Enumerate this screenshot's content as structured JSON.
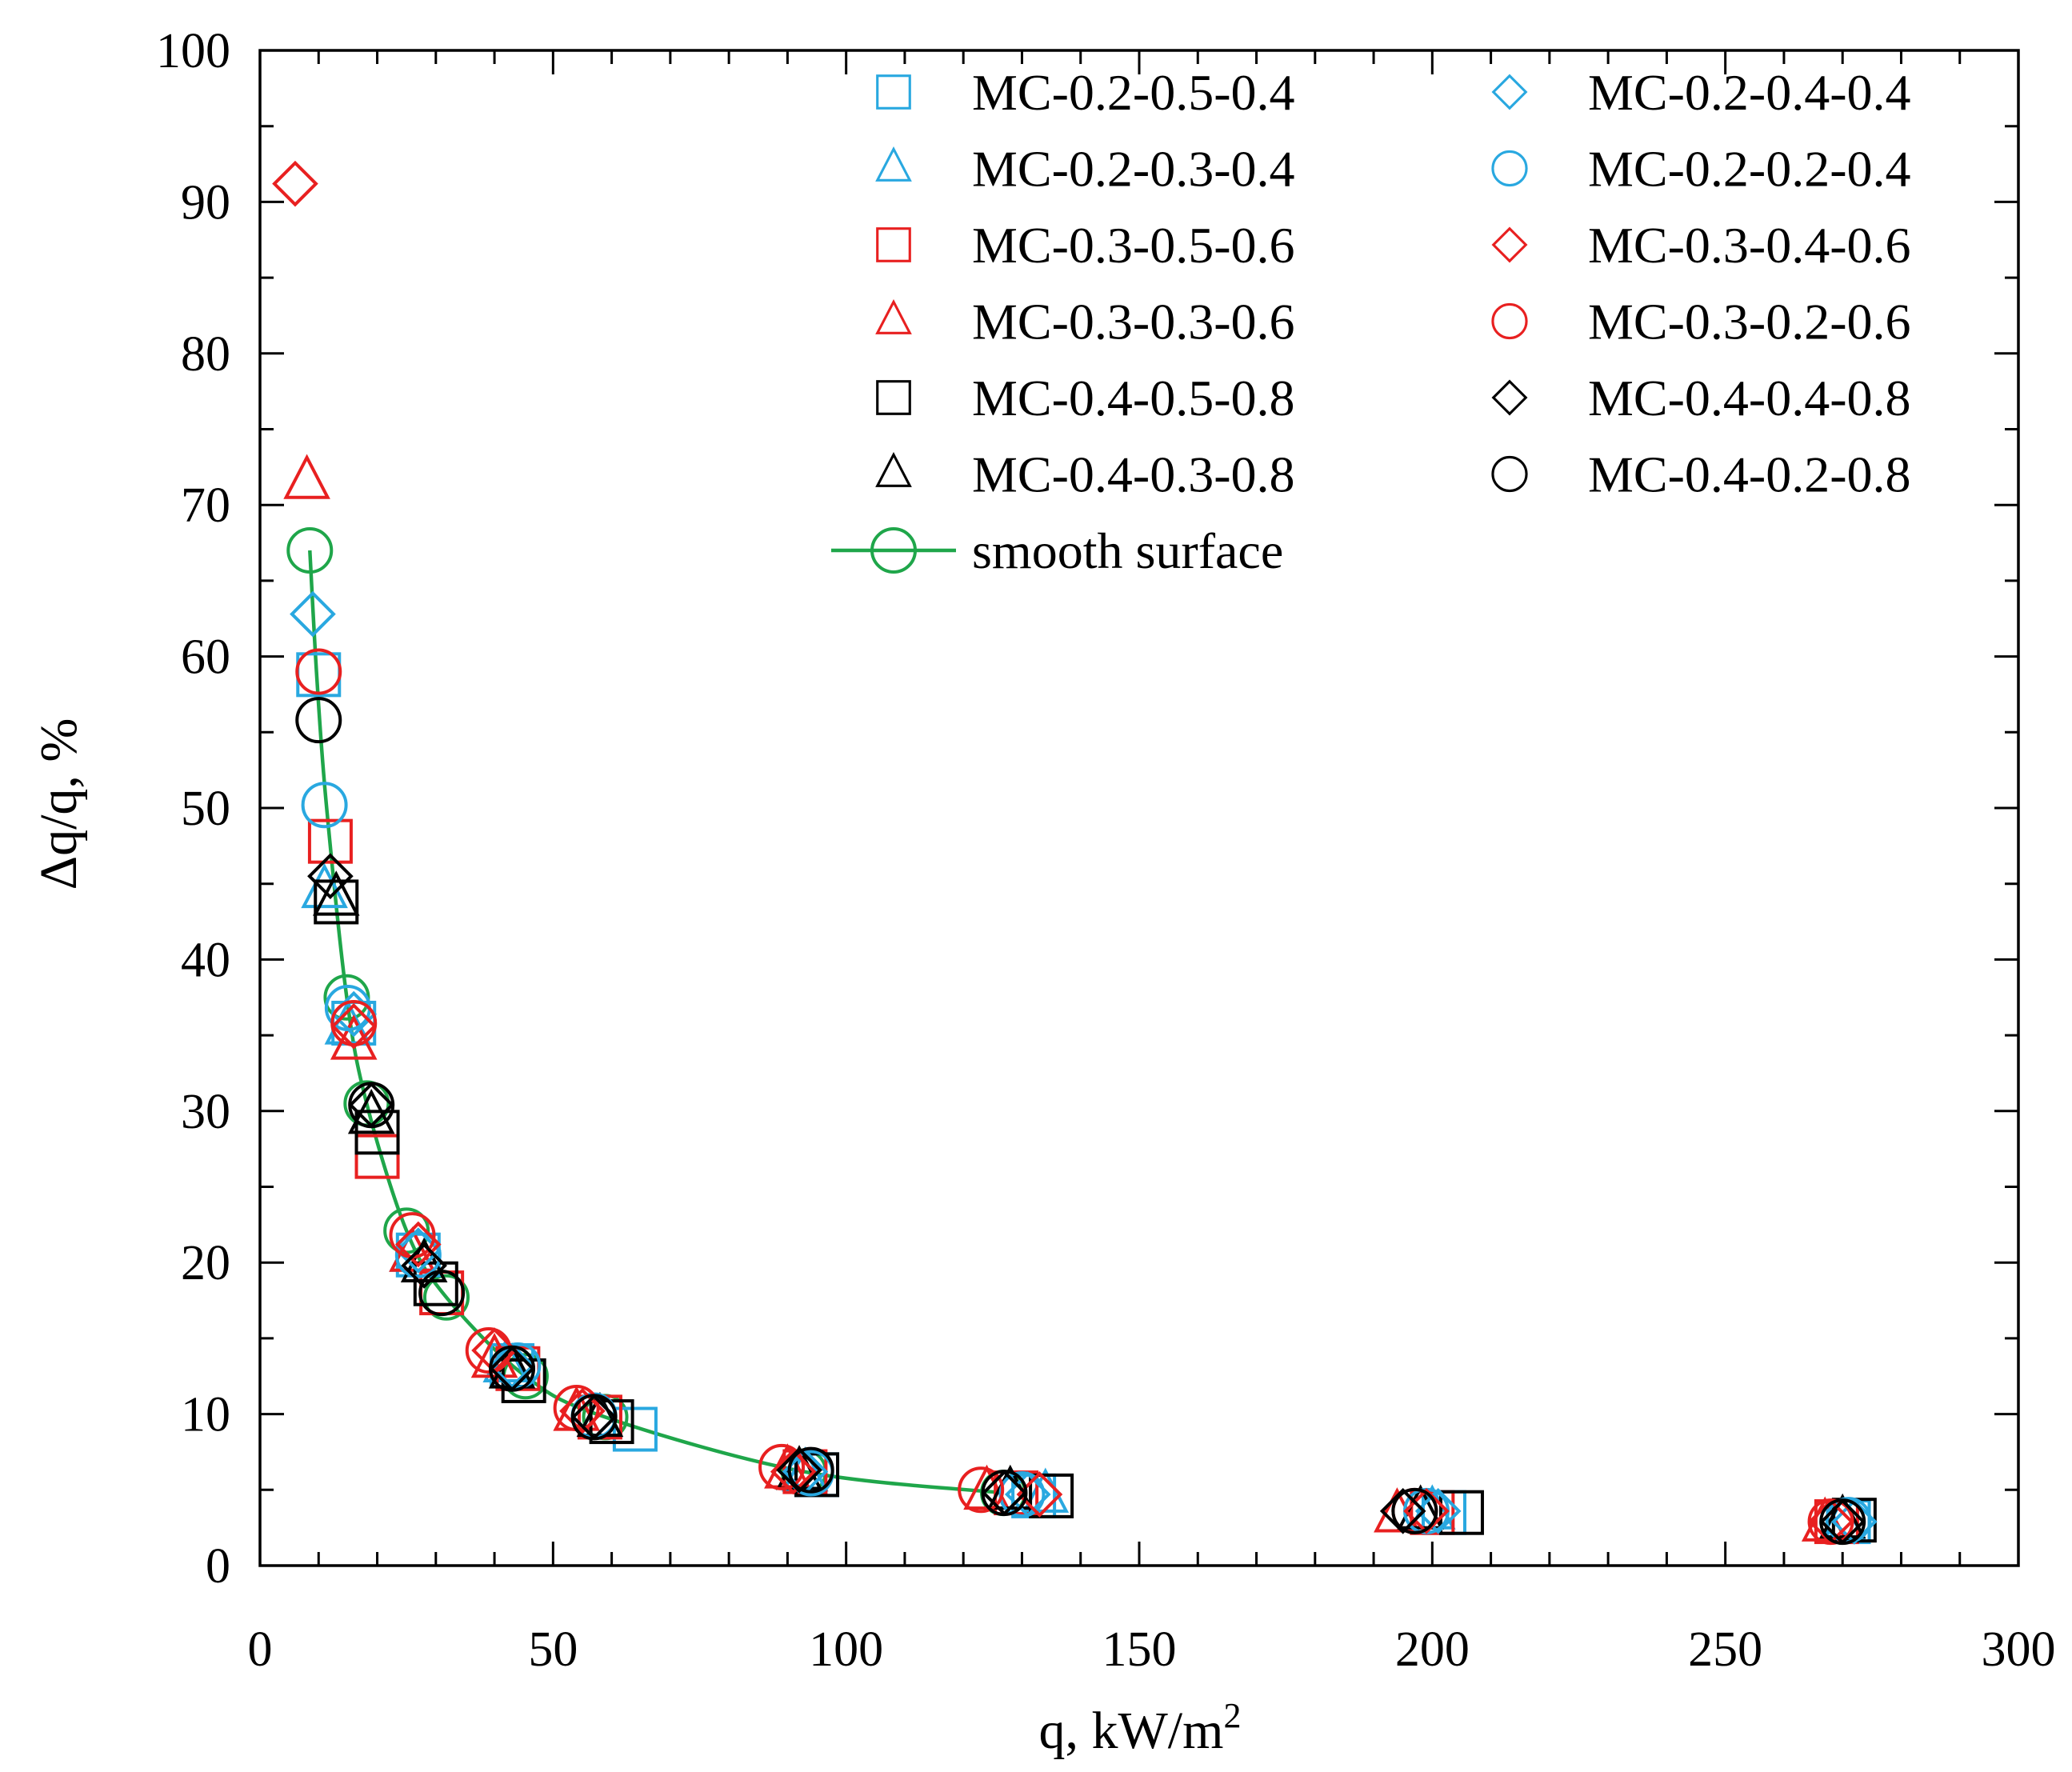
{
  "chart_data": {
    "type": "scatter",
    "xlabel": "q, kW/m",
    "xlabel_superscript": "2",
    "ylabel": "Δq/q, %",
    "xlim": [
      0,
      300
    ],
    "ylim": [
      0,
      100
    ],
    "xticks": [
      0,
      50,
      100,
      150,
      200,
      250,
      300
    ],
    "yticks": [
      0,
      10,
      20,
      30,
      40,
      50,
      60,
      70,
      80,
      90,
      100
    ],
    "grid": false,
    "legend_position": "top-right",
    "series": [
      {
        "name": "MC-0.2-0.5-0.4",
        "marker": "square",
        "color": "#29a8e0",
        "x": [
          10,
          16,
          27,
          43,
          64,
          95,
          132,
          202,
          271
        ],
        "y": [
          58.8,
          35.8,
          20.5,
          13.2,
          9.0,
          6.0,
          4.6,
          3.5,
          2.9
        ]
      },
      {
        "name": "MC-0.2-0.3-0.4",
        "marker": "triangle",
        "color": "#29a8e0",
        "x": [
          11,
          15,
          26,
          42,
          58,
          93,
          134,
          200,
          270
        ],
        "y": [
          44.5,
          35.5,
          20.5,
          13.2,
          9.6,
          6.0,
          4.6,
          3.5,
          2.8
        ]
      },
      {
        "name": "MC-0.3-0.5-0.6",
        "marker": "square",
        "color": "#e82020",
        "x": [
          12,
          20,
          31,
          44,
          58,
          93,
          129,
          200,
          269
        ],
        "y": [
          47.8,
          27.0,
          18.0,
          13.0,
          9.8,
          6.2,
          4.8,
          3.5,
          2.9
        ]
      },
      {
        "name": "MC-0.3-0.3-0.6",
        "marker": "triangle",
        "color": "#e82020",
        "x": [
          8,
          16,
          26,
          40,
          54,
          90,
          124,
          194,
          267
        ],
        "y": [
          71.5,
          34.5,
          20.5,
          13.5,
          10.0,
          6.2,
          4.8,
          3.3,
          2.7
        ]
      },
      {
        "name": "MC-0.4-0.5-0.8",
        "marker": "square",
        "color": "#000000",
        "x": [
          13,
          20,
          30,
          45,
          60,
          95,
          135,
          205,
          272
        ],
        "y": [
          43.8,
          28.6,
          18.6,
          12.2,
          9.5,
          6.0,
          4.6,
          3.5,
          3.0
        ]
      },
      {
        "name": "MC-0.4-0.3-0.8",
        "marker": "triangle",
        "color": "#000000",
        "x": [
          13,
          19,
          28,
          43,
          58,
          92,
          128,
          198,
          270
        ],
        "y": [
          44.0,
          29.6,
          19.8,
          12.8,
          9.6,
          6.1,
          4.8,
          3.5,
          2.9
        ]
      },
      {
        "name": "MC-0.2-0.4-0.4",
        "marker": "diamond",
        "color": "#29a8e0",
        "x": [
          9,
          16,
          27,
          43,
          57,
          93,
          131,
          201,
          272
        ],
        "y": [
          62.8,
          36.4,
          20.8,
          13.2,
          9.8,
          6.2,
          4.7,
          3.6,
          2.9
        ]
      },
      {
        "name": "MC-0.2-0.2-0.4",
        "marker": "circle",
        "color": "#29a8e0",
        "x": [
          11,
          15,
          27,
          44,
          57,
          94,
          130,
          199,
          271
        ],
        "y": [
          50.2,
          36.8,
          20.5,
          13.2,
          9.9,
          6.1,
          4.7,
          3.6,
          3.0
        ]
      },
      {
        "name": "MC-0.3-0.4-0.6",
        "marker": "diamond",
        "color": "#e82020",
        "x": [
          6,
          16,
          27,
          40,
          55,
          91,
          133,
          199,
          268
        ],
        "y": [
          91.2,
          35.6,
          21.2,
          14.2,
          10.2,
          6.2,
          4.7,
          3.6,
          2.9
        ]
      },
      {
        "name": "MC-0.3-0.2-0.6",
        "marker": "circle",
        "color": "#e82020",
        "x": [
          10,
          16,
          26,
          39,
          54,
          89,
          123,
          197,
          268
        ],
        "y": [
          59.0,
          35.8,
          21.8,
          14.2,
          10.4,
          6.5,
          5.0,
          3.6,
          2.9
        ]
      },
      {
        "name": "MC-0.4-0.4-0.8",
        "marker": "diamond",
        "color": "#000000",
        "x": [
          12,
          19,
          28,
          43,
          57,
          92,
          127,
          195,
          270
        ],
        "y": [
          45.5,
          30.4,
          19.8,
          13.0,
          9.8,
          6.3,
          4.8,
          3.6,
          2.9
        ]
      },
      {
        "name": "MC-0.4-0.2-0.8",
        "marker": "circle",
        "color": "#000000",
        "x": [
          10,
          19,
          31,
          43,
          57,
          94,
          127,
          197,
          270
        ],
        "y": [
          55.8,
          30.4,
          18.0,
          13.0,
          9.8,
          6.3,
          4.8,
          3.6,
          2.9
        ]
      },
      {
        "name": "smooth surface",
        "marker": "circle-line",
        "color": "#1fa64a",
        "x": [
          8.5,
          9.7,
          11.3,
          14.8,
          18.2,
          25.0,
          31.8,
          45.3,
          58.9,
          92.8,
          126.8
        ],
        "y": [
          67.0,
          58.6,
          50.3,
          37.5,
          30.5,
          22.1,
          17.7,
          12.5,
          9.8,
          6.2,
          4.8
        ],
        "marker_x": [
          8.5,
          14.8,
          18.2,
          25.0,
          31.8,
          45.3,
          58.9,
          92.8,
          126.8
        ],
        "marker_y": [
          67.0,
          37.5,
          30.5,
          22.1,
          17.7,
          12.5,
          9.8,
          6.2,
          4.8
        ]
      }
    ],
    "legend_columns": [
      [
        "MC-0.2-0.5-0.4",
        "MC-0.2-0.3-0.4",
        "MC-0.3-0.5-0.6",
        "MC-0.3-0.3-0.6",
        "MC-0.4-0.5-0.8",
        "MC-0.4-0.3-0.8",
        "smooth surface"
      ],
      [
        "MC-0.2-0.4-0.4",
        "MC-0.2-0.2-0.4",
        "MC-0.3-0.4-0.6",
        "MC-0.3-0.2-0.6",
        "MC-0.4-0.4-0.8",
        "MC-0.4-0.2-0.8"
      ]
    ]
  }
}
